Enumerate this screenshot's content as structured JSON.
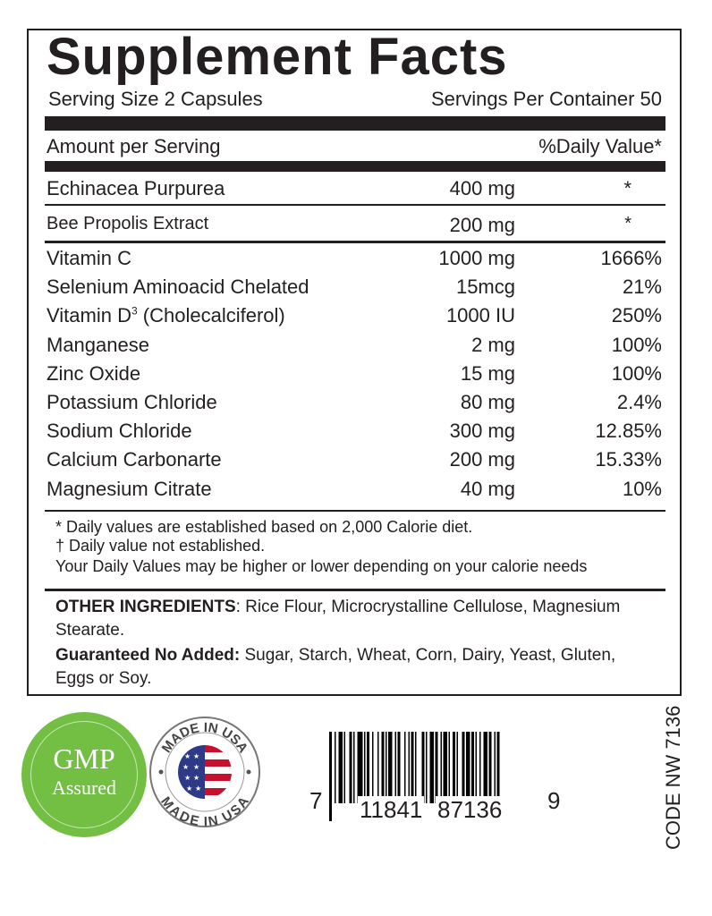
{
  "panel": {
    "title": "Supplement Facts",
    "serving_size": "Serving Size 2 Capsules",
    "servings_per_container": "Servings Per Container 50",
    "amount_header": "Amount per Serving",
    "dv_header": "%Daily Value*"
  },
  "top_rows": [
    {
      "name": "Echinacea Purpurea",
      "amount": "400 mg",
      "dv": "*"
    },
    {
      "name": "Bee Propolis Extract",
      "amount": "200 mg",
      "dv": "*"
    }
  ],
  "rows": [
    {
      "name": "Vitamin C",
      "amount": "1000 mg",
      "dv": "1666%"
    },
    {
      "name": "Selenium Aminoacid Chelated",
      "amount": "15mcg",
      "dv": "21%"
    },
    {
      "name": "Vitamin D",
      "sup": "3",
      "name_suffix": "(Cholecalciferol)",
      "amount": "1000 IU",
      "dv": "250%"
    },
    {
      "name": "Manganese",
      "amount": "2 mg",
      "dv": "100%"
    },
    {
      "name": "Zinc Oxide",
      "amount": "15 mg",
      "dv": "100%"
    },
    {
      "name": "Potassium Chloride",
      "amount": "80 mg",
      "dv": "2.4%"
    },
    {
      "name": "Sodium Chloride",
      "amount": "300 mg",
      "dv": "12.85%"
    },
    {
      "name": "Calcium Carbonarte",
      "amount": "200 mg",
      "dv": "15.33%"
    },
    {
      "name": "Magnesium Citrate",
      "amount": "40 mg",
      "dv": "10%"
    }
  ],
  "footnotes": [
    "* Daily values are established based on 2,000 Calorie diet.",
    "† Daily value not established.",
    "Your Daily Values may be higher or lower depending on your calorie needs"
  ],
  "other_ingredients": {
    "label": "OTHER INGREDIENTS",
    "text_line1": ": Rice Flour, Microcrystalline Cellulose, Magnesium",
    "text_line2": "Stearate.",
    "guaranteed_label": "Guaranteed No Added:",
    "guaranteed_line1": " Sugar, Starch, Wheat, Corn, Dairy, Yeast, Gluten,",
    "guaranteed_line2": "Eggs or Soy."
  },
  "badges": {
    "gmp_line1": "GMP",
    "gmp_line2": "Assured",
    "gmp_color": "#72bf44",
    "made_in_usa": "MADE IN USA"
  },
  "barcode": {
    "left_digit": "7",
    "group1": "11841",
    "group2": "87136",
    "right_digit": "9"
  },
  "code": "CODE NW 7136"
}
